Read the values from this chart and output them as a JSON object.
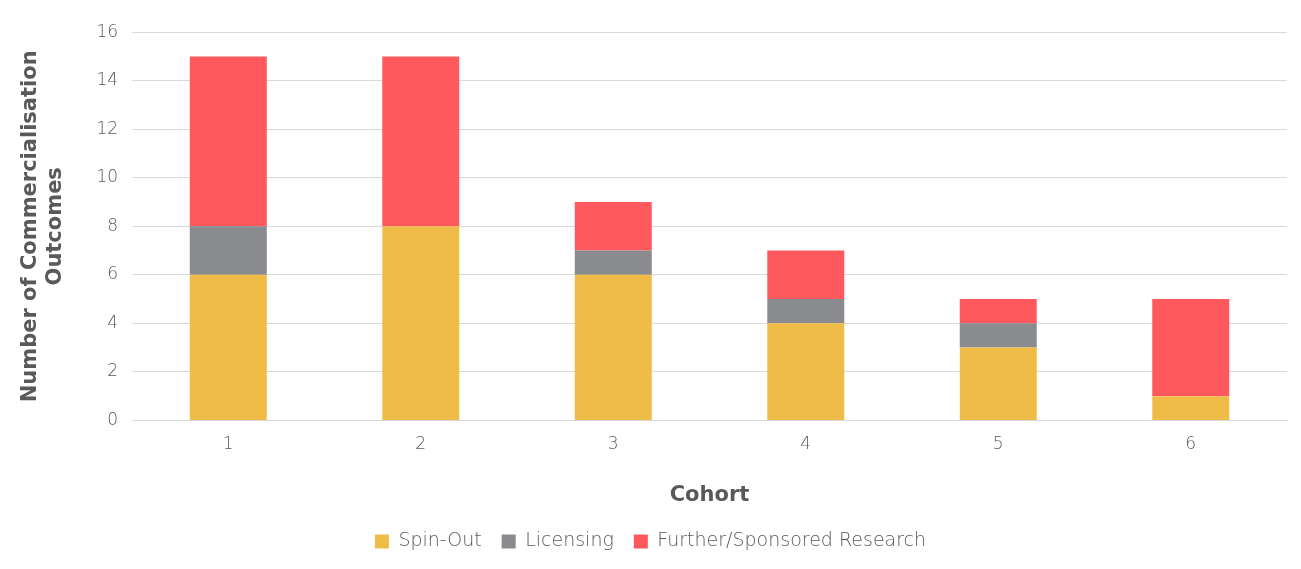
{
  "chart_data": {
    "type": "bar",
    "stacked": true,
    "xlabel": "Cohort",
    "ylabel": "Number of Commercialisation Outcomes",
    "categories": [
      "1",
      "2",
      "3",
      "4",
      "5",
      "6"
    ],
    "series": [
      {
        "name": "Spin-Out",
        "color": "#f0bc48",
        "values": [
          6,
          8,
          6,
          4,
          3,
          1
        ]
      },
      {
        "name": "Licensing",
        "color": "#898b8e",
        "values": [
          2,
          0,
          1,
          1,
          1,
          0
        ]
      },
      {
        "name": "Further/Sponsored Research",
        "color": "#ff585d",
        "values": [
          7,
          7,
          2,
          2,
          1,
          4
        ]
      }
    ],
    "ylim": [
      0,
      16
    ],
    "yticks": [
      0,
      2,
      4,
      6,
      8,
      10,
      12,
      14,
      16
    ],
    "grid": "y",
    "legend": "bottom"
  }
}
